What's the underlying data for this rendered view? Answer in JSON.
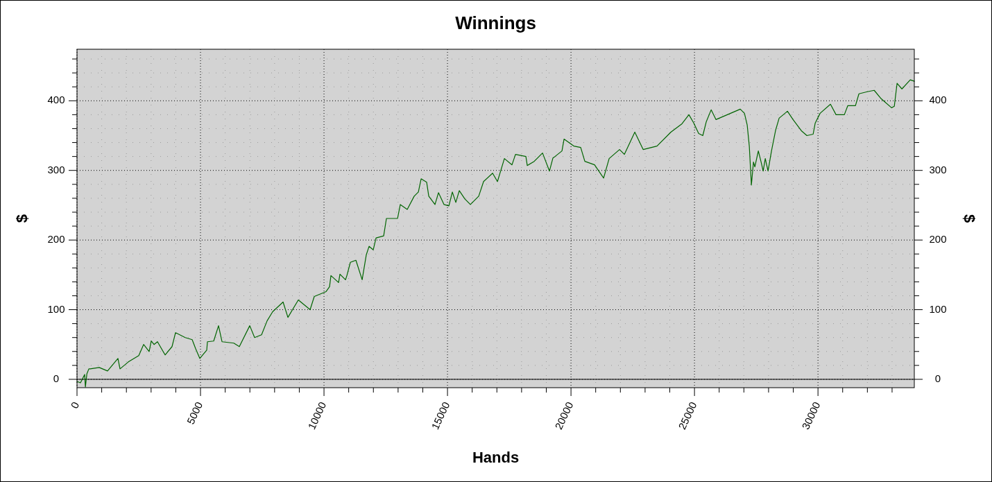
{
  "chart_data": {
    "type": "line",
    "title": "Winnings",
    "xlabel": "Hands",
    "ylabel": "$",
    "y2label": "$",
    "xlim": [
      0,
      33900
    ],
    "ylim": [
      -12,
      474
    ],
    "y2lim": [
      -12,
      474
    ],
    "xticks": [
      0,
      {
        "value": 1000,
        "label": null
      },
      {
        "value": 2000,
        "label": null
      },
      {
        "value": 3000,
        "label": null
      },
      {
        "value": 4000,
        "label": null
      },
      5000,
      {
        "value": 6000,
        "label": null
      },
      {
        "value": 7000,
        "label": null
      },
      {
        "value": 8000,
        "label": null
      },
      {
        "value": 9000,
        "label": null
      },
      10000,
      {
        "value": 11000,
        "label": null
      },
      {
        "value": 12000,
        "label": null
      },
      {
        "value": 13000,
        "label": null
      },
      {
        "value": 14000,
        "label": null
      },
      15000,
      {
        "value": 16000,
        "label": null
      },
      {
        "value": 17000,
        "label": null
      },
      {
        "value": 18000,
        "label": null
      },
      {
        "value": 19000,
        "label": null
      },
      20000,
      {
        "value": 21000,
        "label": null
      },
      {
        "value": 22000,
        "label": null
      },
      {
        "value": 23000,
        "label": null
      },
      {
        "value": 24000,
        "label": null
      },
      25000,
      {
        "value": 26000,
        "label": null
      },
      {
        "value": 27000,
        "label": null
      },
      {
        "value": 28000,
        "label": null
      },
      {
        "value": 29000,
        "label": null
      },
      30000,
      {
        "value": 31000,
        "label": null
      },
      {
        "value": 32000,
        "label": null
      },
      {
        "value": 33000,
        "label": null
      }
    ],
    "yticks": [
      0,
      {
        "value": 20,
        "label": null
      },
      {
        "value": 40,
        "label": null
      },
      {
        "value": 60,
        "label": null
      },
      {
        "value": 80,
        "label": null
      },
      100,
      {
        "value": 120,
        "label": null
      },
      {
        "value": 140,
        "label": null
      },
      {
        "value": 160,
        "label": null
      },
      {
        "value": 180,
        "label": null
      },
      200,
      {
        "value": 220,
        "label": null
      },
      {
        "value": 240,
        "label": null
      },
      {
        "value": 260,
        "label": null
      },
      {
        "value": 280,
        "label": null
      },
      300,
      {
        "value": 320,
        "label": null
      },
      {
        "value": 340,
        "label": null
      },
      {
        "value": 360,
        "label": null
      },
      {
        "value": 380,
        "label": null
      },
      400,
      {
        "value": 420,
        "label": null
      },
      {
        "value": 440,
        "label": null
      },
      {
        "value": 460,
        "label": null
      }
    ],
    "y2ticks": [
      0,
      {
        "value": 20,
        "label": null
      },
      {
        "value": 40,
        "label": null
      },
      {
        "value": 60,
        "label": null
      },
      {
        "value": 80,
        "label": null
      },
      100,
      {
        "value": 120,
        "label": null
      },
      {
        "value": 140,
        "label": null
      },
      {
        "value": 160,
        "label": null
      },
      {
        "value": 180,
        "label": null
      },
      200,
      {
        "value": 220,
        "label": null
      },
      {
        "value": 240,
        "label": null
      },
      {
        "value": 260,
        "label": null
      },
      {
        "value": 280,
        "label": null
      },
      300,
      {
        "value": 320,
        "label": null
      },
      {
        "value": 340,
        "label": null
      },
      {
        "value": 360,
        "label": null
      },
      {
        "value": 380,
        "label": null
      },
      400,
      {
        "value": 420,
        "label": null
      },
      {
        "value": 440,
        "label": null
      },
      {
        "value": 460,
        "label": null
      }
    ],
    "grid": true,
    "line_style": "solid",
    "marker": "none",
    "ref_lines": [
      {
        "axis": "y",
        "value": 0,
        "color": "#000000"
      }
    ],
    "series": [
      {
        "color": "#006400",
        "x": [
          0,
          140,
          310,
          340,
          400,
          480,
          534,
          899,
          1236,
          1657,
          1742,
          2079,
          2500,
          2697,
          2921,
          3006,
          3118,
          3258,
          3568,
          3848,
          3989,
          4382,
          4663,
          4803,
          4972,
          5253,
          5281,
          5534,
          5730,
          5871,
          6348,
          6573,
          6994,
          7191,
          7472,
          7697,
          7921,
          8343,
          8540,
          8961,
          9438,
          9607,
          10085,
          10225,
          10281,
          10590,
          10646,
          10871,
          10927,
          11068,
          11292,
          11545,
          11714,
          11826,
          11995,
          12107,
          12416,
          12528,
          12978,
          13090,
          13371,
          13652,
          13821,
          13933,
          14157,
          14242,
          14494,
          14635,
          14860,
          15056,
          15197,
          15337,
          15478,
          15703,
          15927,
          16264,
          16461,
          16826,
          17023,
          17304,
          17612,
          17753,
          18174,
          18230,
          18511,
          18848,
          19129,
          19270,
          19354,
          19635,
          19719,
          20112,
          20393,
          20561,
          20954,
          21320,
          21545,
          21966,
          22163,
          22584,
          22921,
          23483,
          24045,
          24494,
          24775,
          24972,
          25169,
          25337,
          25478,
          25675,
          25871,
          26461,
          26854,
          27023,
          27135,
          27219,
          27304,
          27388,
          27444,
          27585,
          27697,
          27781,
          27866,
          27978,
          28118,
          28287,
          28427,
          28764,
          28989,
          29326,
          29551,
          29804,
          29888,
          30085,
          30506,
          30731,
          31068,
          31208,
          31517,
          31658,
          31995,
          32276,
          32557,
          32978,
          33090,
          33202,
          33399,
          33736,
          33900
        ],
        "values": [
          -3,
          -5,
          7,
          -11,
          8,
          15,
          15,
          17,
          12,
          30,
          15,
          25,
          34,
          50,
          40,
          55,
          50,
          54,
          35,
          47,
          67,
          60,
          57,
          44,
          30,
          42,
          54,
          55,
          77,
          54,
          52,
          47,
          77,
          60,
          64,
          84,
          97,
          111,
          89,
          114,
          100,
          119,
          126,
          133,
          149,
          139,
          151,
          143,
          149,
          168,
          171,
          143,
          179,
          191,
          186,
          203,
          206,
          231,
          231,
          251,
          244,
          263,
          269,
          288,
          283,
          263,
          251,
          268,
          251,
          249,
          269,
          254,
          271,
          259,
          251,
          263,
          284,
          296,
          284,
          317,
          308,
          323,
          320,
          307,
          313,
          325,
          299,
          318,
          320,
          328,
          345,
          335,
          333,
          313,
          308,
          289,
          317,
          330,
          323,
          355,
          330,
          335,
          355,
          367,
          380,
          368,
          353,
          350,
          370,
          387,
          373,
          382,
          388,
          382,
          365,
          335,
          279,
          312,
          305,
          328,
          312,
          299,
          317,
          299,
          328,
          358,
          375,
          385,
          373,
          357,
          350,
          352,
          368,
          382,
          395,
          380,
          380,
          393,
          393,
          410,
          413,
          415,
          403,
          390,
          392,
          425,
          417,
          430,
          428
        ]
      }
    ]
  }
}
